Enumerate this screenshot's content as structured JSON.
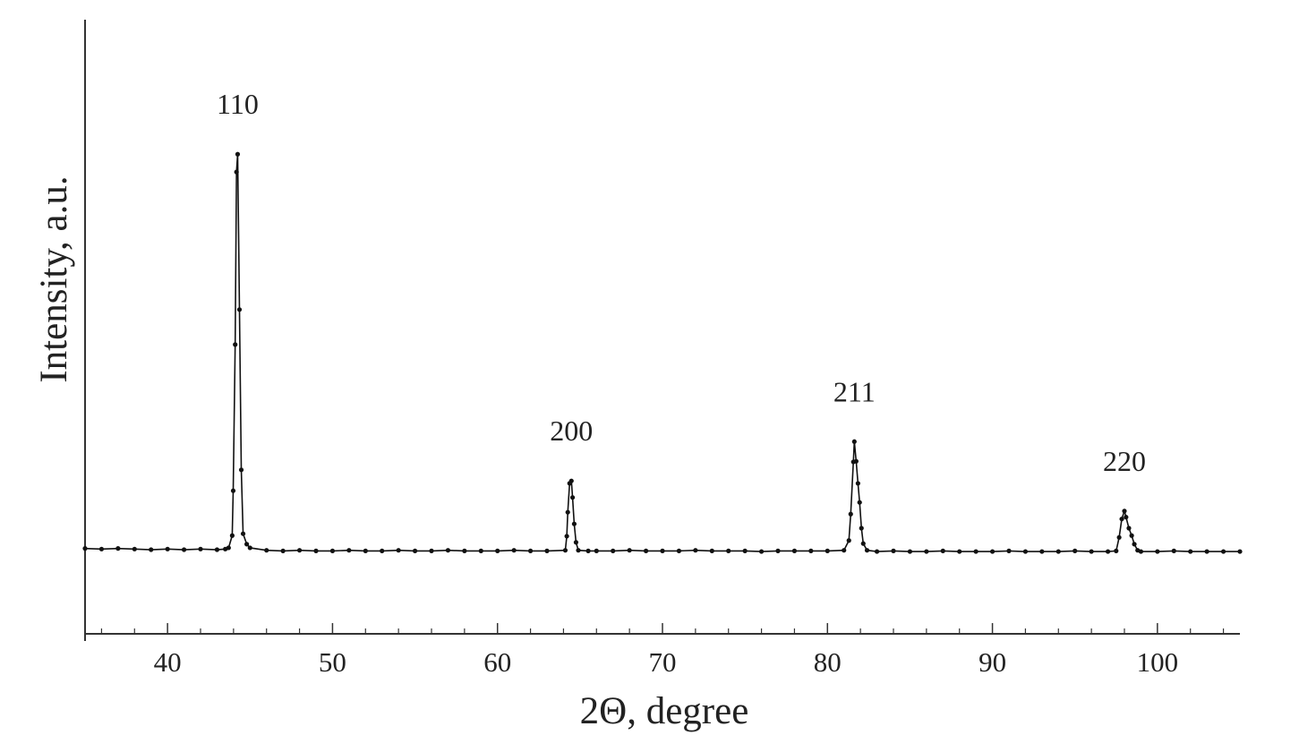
{
  "chart_data": {
    "type": "line",
    "xlabel": "2Θ, degree",
    "ylabel": "Intensity, a.u.",
    "xlim": [
      35,
      105
    ],
    "ylim": [
      0,
      100
    ],
    "xticks": [
      40,
      50,
      60,
      70,
      80,
      90,
      100
    ],
    "xminorticks": [
      36,
      38,
      42,
      44,
      46,
      48,
      52,
      54,
      56,
      58,
      62,
      64,
      66,
      68,
      72,
      74,
      76,
      78,
      82,
      84,
      86,
      88,
      92,
      94,
      96,
      98,
      102,
      104
    ],
    "color": "#111111",
    "markers": true,
    "x": [
      35,
      36,
      37,
      38,
      39,
      40,
      41,
      42,
      43,
      43.5,
      43.7,
      43.92,
      43.98,
      44.1,
      44.18,
      44.25,
      44.36,
      44.47,
      44.58,
      44.8,
      45,
      46,
      47,
      48,
      49,
      50,
      51,
      52,
      53,
      54,
      55,
      56,
      57,
      58,
      59,
      60,
      61,
      62,
      63,
      64.11,
      64.2,
      64.26,
      64.37,
      64.48,
      64.55,
      64.65,
      64.76,
      64.9,
      65.5,
      66,
      67,
      68,
      69,
      70,
      71,
      72,
      73,
      74,
      75,
      76,
      77,
      78,
      79,
      80,
      81,
      81.3,
      81.41,
      81.57,
      81.63,
      81.74,
      81.85,
      81.95,
      82.06,
      82.17,
      82.4,
      83,
      84,
      85,
      86,
      87,
      88,
      89,
      90,
      91,
      92,
      93,
      94,
      95,
      96,
      97,
      97.5,
      97.68,
      97.84,
      98.0,
      98.1,
      98.27,
      98.44,
      98.6,
      98.8,
      99,
      100,
      101,
      102,
      103,
      104,
      105
    ],
    "values": [
      13.9,
      13.8,
      13.9,
      13.8,
      13.7,
      13.8,
      13.7,
      13.8,
      13.7,
      13.8,
      14.0,
      16.0,
      23.3,
      47.1,
      75.2,
      78.1,
      52.8,
      26.7,
      16.3,
      14.6,
      14.0,
      13.6,
      13.5,
      13.6,
      13.5,
      13.5,
      13.6,
      13.5,
      13.5,
      13.6,
      13.5,
      13.5,
      13.6,
      13.5,
      13.5,
      13.5,
      13.6,
      13.5,
      13.5,
      13.6,
      15.9,
      19.8,
      24.5,
      24.9,
      22.2,
      17.9,
      14.9,
      13.6,
      13.5,
      13.5,
      13.5,
      13.6,
      13.5,
      13.5,
      13.5,
      13.6,
      13.5,
      13.5,
      13.5,
      13.4,
      13.5,
      13.5,
      13.5,
      13.5,
      13.6,
      15.2,
      19.5,
      28.0,
      31.3,
      28.1,
      24.5,
      21.4,
      17.2,
      14.7,
      13.6,
      13.4,
      13.5,
      13.4,
      13.4,
      13.5,
      13.4,
      13.4,
      13.4,
      13.5,
      13.4,
      13.4,
      13.4,
      13.5,
      13.4,
      13.4,
      13.5,
      15.7,
      18.7,
      20.0,
      19.0,
      17.2,
      16.0,
      14.6,
      13.6,
      13.4,
      13.4,
      13.5,
      13.4,
      13.4,
      13.4,
      13.4
    ],
    "annotations": [
      {
        "text": "110",
        "x": 44.25
      },
      {
        "text": "200",
        "x": 64.48
      },
      {
        "text": "211",
        "x": 81.63
      },
      {
        "text": "220",
        "x": 98.0
      }
    ]
  }
}
